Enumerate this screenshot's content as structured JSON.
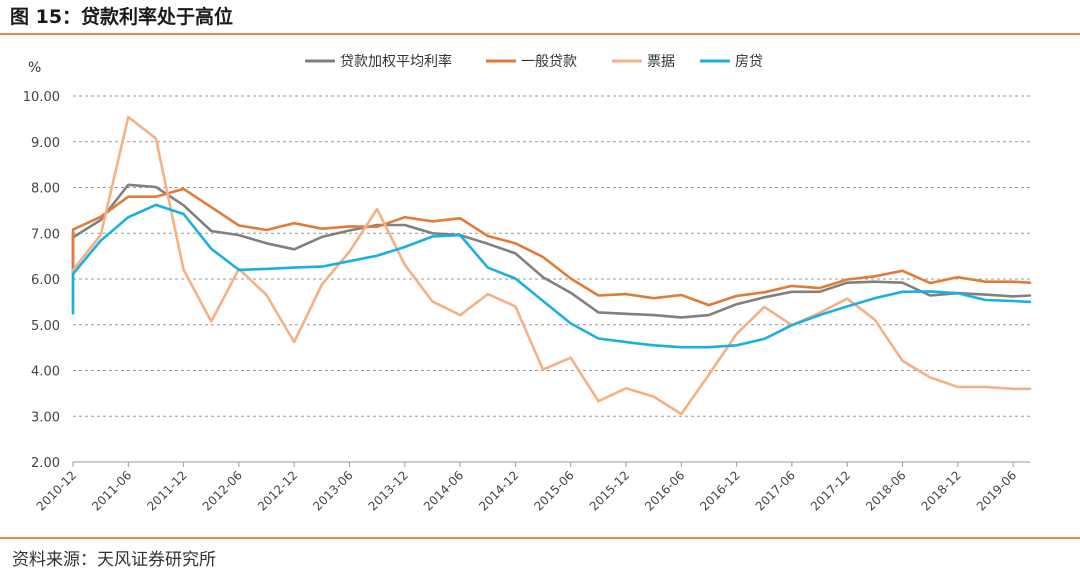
{
  "figure": {
    "title": "图 15：贷款利率处于高位",
    "source": "资料来源：天风证券研究所"
  },
  "chart_data": {
    "type": "line",
    "unit_label": "%",
    "ylim": [
      2.0,
      10.0
    ],
    "yticks": [
      "10.00",
      "9.00",
      "8.00",
      "7.00",
      "6.00",
      "5.00",
      "4.00",
      "3.00",
      "2.00"
    ],
    "ytick_values": [
      10,
      9,
      8,
      7,
      6,
      5,
      4,
      3,
      2
    ],
    "xticks": [
      "2010-12",
      "2011-06",
      "2011-12",
      "2012-06",
      "2012-12",
      "2013-06",
      "2013-12",
      "2014-06",
      "2014-12",
      "2015-06",
      "2015-12",
      "2016-06",
      "2016-12",
      "2017-06",
      "2017-12",
      "2018-06",
      "2018-12",
      "2019-06"
    ],
    "x": [
      "2010-09",
      "2010-12",
      "2011-03",
      "2011-06",
      "2011-09",
      "2011-12",
      "2012-03",
      "2012-06",
      "2012-09",
      "2012-12",
      "2013-03",
      "2013-06",
      "2013-09",
      "2013-12",
      "2014-03",
      "2014-06",
      "2014-09",
      "2014-12",
      "2015-03",
      "2015-06",
      "2015-09",
      "2015-12",
      "2016-03",
      "2016-06",
      "2016-09",
      "2016-12",
      "2017-03",
      "2017-06",
      "2017-09",
      "2017-12",
      "2018-03",
      "2018-06",
      "2018-09",
      "2018-12",
      "2019-03",
      "2019-06",
      "2019-09"
    ],
    "grid": true,
    "legend_position": "top-center",
    "series": [
      {
        "name": "贷款加权平均利率",
        "color": "#808080",
        "values": [
          6.07,
          6.91,
          7.29,
          8.06,
          8.01,
          7.61,
          7.05,
          6.96,
          6.78,
          6.65,
          6.92,
          7.06,
          7.18,
          7.18,
          7.0,
          6.96,
          6.77,
          6.56,
          6.04,
          5.7,
          5.27,
          5.24,
          5.21,
          5.16,
          5.21,
          5.45,
          5.6,
          5.72,
          5.72,
          5.92,
          5.94,
          5.92,
          5.64,
          5.69,
          5.66,
          5.62,
          5.64
        ]
      },
      {
        "name": "一般贷款",
        "color": "#e07b39",
        "values": [
          6.29,
          7.08,
          7.36,
          7.8,
          7.8,
          7.97,
          7.57,
          7.17,
          7.07,
          7.22,
          7.1,
          7.15,
          7.14,
          7.35,
          7.26,
          7.33,
          6.94,
          6.78,
          6.48,
          6.01,
          5.64,
          5.67,
          5.58,
          5.65,
          5.43,
          5.63,
          5.71,
          5.85,
          5.8,
          5.99,
          6.06,
          6.18,
          5.91,
          6.04,
          5.94,
          5.94,
          5.92
        ]
      },
      {
        "name": "票据",
        "color": "#f4b183",
        "values": [
          5.37,
          6.2,
          6.96,
          9.54,
          9.07,
          6.2,
          5.07,
          6.22,
          5.65,
          4.62,
          5.88,
          6.6,
          7.53,
          6.31,
          5.51,
          5.21,
          5.67,
          5.4,
          4.02,
          4.28,
          3.33,
          3.61,
          3.43,
          3.05,
          3.91,
          4.8,
          5.39,
          4.99,
          5.26,
          5.57,
          5.11,
          4.21,
          3.85,
          3.64,
          3.64,
          3.6,
          3.6
        ]
      },
      {
        "name": "房贷",
        "color": "#1ab0e0",
        "values": [
          5.25,
          6.11,
          6.84,
          7.35,
          7.62,
          7.42,
          6.66,
          6.2,
          6.22,
          6.25,
          6.27,
          6.39,
          6.51,
          6.7,
          6.93,
          6.96,
          6.25,
          6.01,
          5.52,
          5.03,
          4.7,
          4.62,
          4.55,
          4.51,
          4.51,
          4.55,
          4.69,
          4.99,
          5.21,
          5.4,
          5.58,
          5.72,
          5.73,
          5.69,
          5.54,
          5.52,
          5.5
        ]
      }
    ]
  }
}
